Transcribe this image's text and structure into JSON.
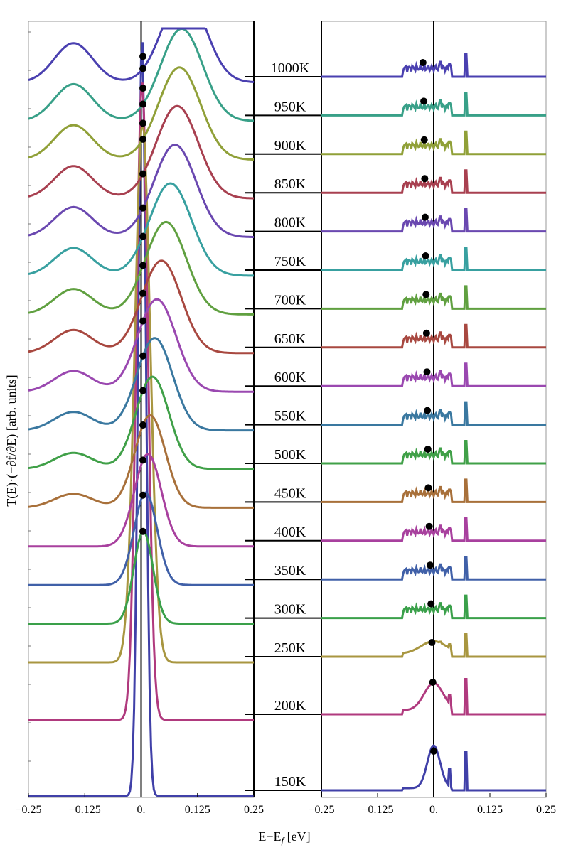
{
  "chart_data": {
    "type": "line",
    "title": "",
    "xlabel": "E−E_f [eV]",
    "ylabel": "T(E)·(−∂f/∂E) [arb. units]",
    "xlim": [
      -0.25,
      0.25
    ],
    "x_ticks": [
      "−0.25",
      "−0.125",
      "0.",
      "0.125",
      "0.25"
    ],
    "x_ticks_right": [
      "−0.25",
      "−0.125",
      "0.",
      "0.125",
      "0.25"
    ],
    "panels": [
      "left",
      "right"
    ],
    "series": [
      {
        "name": "150K",
        "color": "#4040a8",
        "peak_energy_left": 0.002,
        "width_left": 0.012,
        "peak_height_left": 1.0,
        "dot_energy_right": 0.0
      },
      {
        "name": "200K",
        "color": "#b03a7e",
        "peak_energy_left": 0.002,
        "width_left": 0.018,
        "peak_height_left": 1.0,
        "dot_energy_right": -0.002
      },
      {
        "name": "250K",
        "color": "#a89640",
        "peak_energy_left": 0.003,
        "width_left": 0.024,
        "peak_height_left": 1.0,
        "dot_energy_right": -0.004
      },
      {
        "name": "300K",
        "color": "#3aa04a",
        "peak_energy_left": 0.005,
        "width_left": 0.03,
        "peak_height_left": 1.0,
        "dot_energy_right": -0.006
      },
      {
        "name": "350K",
        "color": "#4060a8",
        "peak_energy_left": 0.01,
        "width_left": 0.036,
        "peak_height_left": 1.0,
        "dot_energy_right": -0.008
      },
      {
        "name": "400K",
        "color": "#a8409e",
        "peak_energy_left": 0.015,
        "width_left": 0.042,
        "peak_height_left": 1.0,
        "dot_energy_right": -0.01
      },
      {
        "name": "450K",
        "color": "#a8703a",
        "peak_energy_left": 0.02,
        "width_left": 0.048,
        "peak_height_left": 1.0,
        "dot_energy_right": -0.012
      },
      {
        "name": "500K",
        "color": "#40a048",
        "peak_energy_left": 0.025,
        "width_left": 0.052,
        "peak_height_left": 1.0,
        "dot_energy_right": -0.013
      },
      {
        "name": "550K",
        "color": "#3a78a0",
        "peak_energy_left": 0.03,
        "width_left": 0.056,
        "peak_height_left": 1.0,
        "dot_energy_right": -0.014
      },
      {
        "name": "600K",
        "color": "#9a48b0",
        "peak_energy_left": 0.035,
        "width_left": 0.06,
        "peak_height_left": 1.0,
        "dot_energy_right": -0.015
      },
      {
        "name": "650K",
        "color": "#a84840",
        "peak_energy_left": 0.045,
        "width_left": 0.062,
        "peak_height_left": 1.0,
        "dot_energy_right": -0.016
      },
      {
        "name": "700K",
        "color": "#60a040",
        "peak_energy_left": 0.055,
        "width_left": 0.064,
        "peak_height_left": 1.0,
        "dot_energy_right": -0.017
      },
      {
        "name": "750K",
        "color": "#38a0a0",
        "peak_energy_left": 0.065,
        "width_left": 0.066,
        "peak_height_left": 1.0,
        "dot_energy_right": -0.018
      },
      {
        "name": "800K",
        "color": "#6a48b0",
        "peak_energy_left": 0.075,
        "width_left": 0.066,
        "peak_height_left": 1.0,
        "dot_energy_right": -0.019
      },
      {
        "name": "850K",
        "color": "#a84050",
        "peak_energy_left": 0.08,
        "width_left": 0.066,
        "peak_height_left": 1.0,
        "dot_energy_right": -0.02
      },
      {
        "name": "900K",
        "color": "#90a038",
        "peak_energy_left": 0.085,
        "width_left": 0.066,
        "peak_height_left": 1.0,
        "dot_energy_right": -0.021
      },
      {
        "name": "950K",
        "color": "#38a088",
        "peak_energy_left": 0.09,
        "width_left": 0.066,
        "peak_height_left": 1.0,
        "dot_energy_right": -0.022
      },
      {
        "name": "1000K",
        "color": "#4a40b0",
        "peak_energy_left": 0.095,
        "width_left": 0.066,
        "peak_height_left": 1.0,
        "dot_energy_right": -0.024
      }
    ]
  }
}
